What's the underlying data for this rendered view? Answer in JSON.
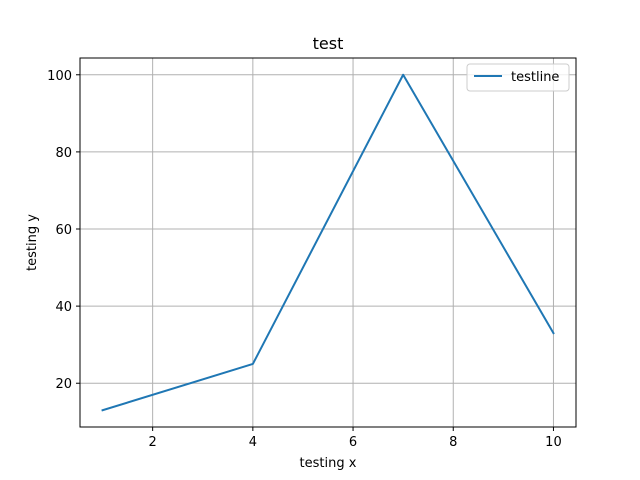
{
  "chart_data": {
    "type": "line",
    "title": "test",
    "xlabel": "testing x",
    "ylabel": "testing y",
    "xlim": [
      0.55,
      10.45
    ],
    "ylim": [
      8.65,
      104.35
    ],
    "xticks": [
      2,
      4,
      6,
      8,
      10
    ],
    "yticks": [
      20,
      40,
      60,
      80,
      100
    ],
    "grid": true,
    "legend_position": "top-right",
    "series": [
      {
        "name": "testline",
        "color": "#1f77b4",
        "x": [
          1,
          4,
          7,
          10
        ],
        "y": [
          13,
          25,
          100,
          33
        ]
      }
    ]
  }
}
